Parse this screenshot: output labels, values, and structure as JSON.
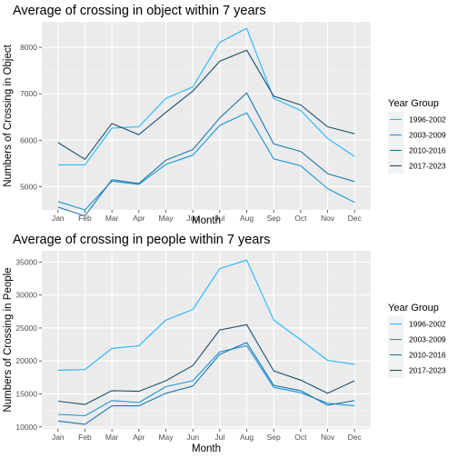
{
  "chart_data": [
    {
      "type": "line",
      "title": "Average of crossing in object within 7 years",
      "xlabel": "Month",
      "ylabel": "Numbers of Crossing in Object",
      "categories": [
        "Jan",
        "Feb",
        "Mar",
        "Apr",
        "May",
        "Jun",
        "Jul",
        "Aug",
        "Sep",
        "Oct",
        "Nov",
        "Dec"
      ],
      "ylim": [
        4500,
        8550
      ],
      "yticks": [
        5000,
        6000,
        7000,
        8000
      ],
      "grid": true,
      "legend_position": "right",
      "legend_title": "Year Group",
      "series": [
        {
          "name": "1996-2002",
          "color": "#1fb7ff",
          "values": [
            5470,
            5470,
            6260,
            6290,
            6900,
            7150,
            8110,
            8410,
            6900,
            6640,
            6040,
            5650
          ]
        },
        {
          "name": "2003-2009",
          "color": "#1a95db",
          "values": [
            4680,
            4500,
            5120,
            5050,
            5480,
            5680,
            6320,
            6590,
            5600,
            5450,
            4960,
            4660
          ]
        },
        {
          "name": "2010-2016",
          "color": "#1877b0",
          "values": [
            4560,
            4370,
            5150,
            5070,
            5570,
            5800,
            6480,
            7020,
            5920,
            5760,
            5280,
            5110
          ]
        },
        {
          "name": "2017-2023",
          "color": "#1b4f72",
          "values": [
            5950,
            5590,
            6360,
            6120,
            6600,
            7060,
            7700,
            7940,
            6950,
            6760,
            6290,
            6140
          ]
        }
      ]
    },
    {
      "type": "line",
      "title": "Average of crossing in people within 7 years",
      "xlabel": "Month",
      "ylabel": "Numbers of Crossing in People",
      "categories": [
        "Jan",
        "Feb",
        "Mar",
        "Apr",
        "May",
        "Jun",
        "Jul",
        "Aug",
        "Sep",
        "Oct",
        "Nov",
        "Dec"
      ],
      "ylim": [
        9700,
        36700
      ],
      "yticks": [
        10000,
        15000,
        20000,
        25000,
        30000,
        35000
      ],
      "grid": true,
      "legend_position": "right",
      "legend_title": "Year Group",
      "series": [
        {
          "name": "1996-2002",
          "color": "#1fb7ff",
          "values": [
            18600,
            18700,
            21900,
            22300,
            26200,
            27800,
            34000,
            35300,
            26200,
            23200,
            20100,
            19500
          ]
        },
        {
          "name": "2003-2009",
          "color": "#1a95db",
          "values": [
            11900,
            11700,
            14000,
            13700,
            16100,
            17000,
            21400,
            22300,
            16000,
            15200,
            13600,
            13200
          ]
        },
        {
          "name": "2010-2016",
          "color": "#1877b0",
          "values": [
            10900,
            10400,
            13200,
            13200,
            15100,
            16200,
            21000,
            22800,
            16300,
            15500,
            13300,
            14000
          ]
        },
        {
          "name": "2017-2023",
          "color": "#1b4f72",
          "values": [
            13900,
            13400,
            15500,
            15400,
            17000,
            19300,
            24700,
            25500,
            18500,
            17100,
            15100,
            17000
          ]
        }
      ]
    }
  ]
}
